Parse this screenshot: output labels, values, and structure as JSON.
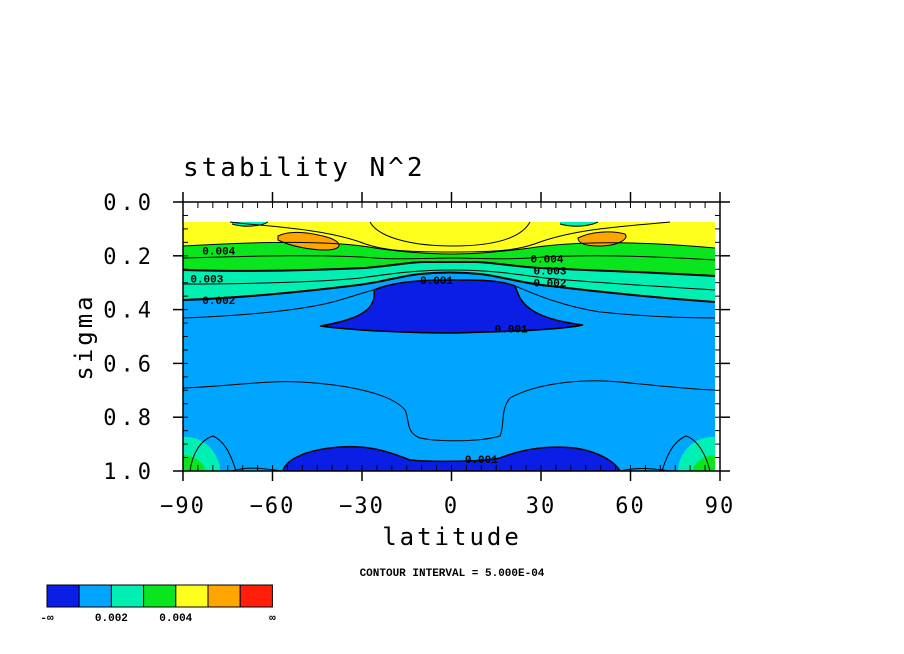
{
  "chart_data": {
    "type": "contour",
    "title": "stability N^2",
    "xlabel": "latitude",
    "ylabel": "sigma",
    "xlim": [
      -90,
      90
    ],
    "ylim": [
      1.0,
      0.0
    ],
    "x_ticks": [
      {
        "value": -90,
        "label": "−90"
      },
      {
        "value": -60,
        "label": "−60"
      },
      {
        "value": -30,
        "label": "−30"
      },
      {
        "value": 0,
        "label": "0"
      },
      {
        "value": 30,
        "label": "30"
      },
      {
        "value": 60,
        "label": "60"
      },
      {
        "value": 90,
        "label": "90"
      }
    ],
    "y_ticks": [
      {
        "value": 0.0,
        "label": "0.0"
      },
      {
        "value": 0.2,
        "label": "0.2"
      },
      {
        "value": 0.4,
        "label": "0.4"
      },
      {
        "value": 0.6,
        "label": "0.6"
      },
      {
        "value": 0.8,
        "label": "0.8"
      },
      {
        "value": 1.0,
        "label": "1.0"
      }
    ],
    "contour_interval_label": "CONTOUR INTERVAL = 5.000E-04",
    "contour_labels": [
      {
        "text": "0.004",
        "lat": -78,
        "sigma": 0.18
      },
      {
        "text": "0.003",
        "lat": -82,
        "sigma": 0.285
      },
      {
        "text": "0.002",
        "lat": -78,
        "sigma": 0.365
      },
      {
        "text": "0.001",
        "lat": -5,
        "sigma": 0.29
      },
      {
        "text": "0.001",
        "lat": 20,
        "sigma": 0.47
      },
      {
        "text": "0.004",
        "lat": 32,
        "sigma": 0.21
      },
      {
        "text": "0.003",
        "lat": 33,
        "sigma": 0.255
      },
      {
        "text": "0.002",
        "lat": 33,
        "sigma": 0.3
      },
      {
        "text": "0.001",
        "lat": 10,
        "sigma": 0.955
      }
    ],
    "colorbar": {
      "colors": [
        "#0a1ee6",
        "#00a5ff",
        "#00f0b4",
        "#0ae61e",
        "#ffff1e",
        "#ffa500",
        "#ff1e0a"
      ],
      "tick_labels": [
        "-∞",
        "0.002",
        "0.004",
        "∞"
      ],
      "tick_values": [
        null,
        0.002,
        0.004,
        null
      ]
    },
    "line_color": "#000000",
    "grid": false
  }
}
